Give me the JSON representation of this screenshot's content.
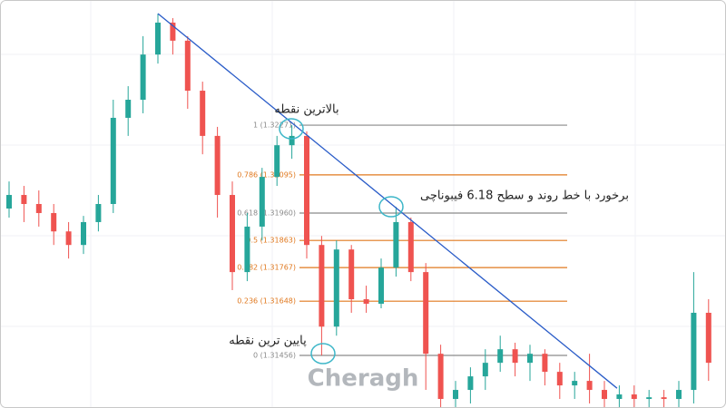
{
  "chart_data": {
    "type": "candlestick",
    "ylim": [
      1.3127,
      1.32714
    ],
    "up_color": "#26a69a",
    "down_color": "#ef5350",
    "open": [
      1.31976,
      1.32024,
      1.31992,
      1.3196,
      1.31895,
      1.31847,
      1.31928,
      1.31992,
      1.32297,
      1.32361,
      1.32521,
      1.32634,
      1.3257,
      1.32393,
      1.32233,
      1.32024,
      1.31751,
      1.31912,
      1.32088,
      1.322,
      1.32233,
      1.31847,
      1.31558,
      1.31831,
      1.31655,
      1.31639,
      1.31767,
      1.31928,
      1.31751,
      1.31462,
      1.31302,
      1.31334,
      1.31382,
      1.3143,
      1.31478,
      1.3143,
      1.31462,
      1.31398,
      1.3135,
      1.31366,
      1.31334,
      1.31302,
      1.31318,
      1.31302,
      1.31308,
      1.31302,
      1.31334,
      1.31607
    ],
    "high": [
      1.32072,
      1.32056,
      1.3204,
      1.31992,
      1.31928,
      1.3195,
      1.32024,
      1.32361,
      1.32409,
      1.32586,
      1.32666,
      1.3265,
      1.32586,
      1.32425,
      1.32265,
      1.32072,
      1.3196,
      1.3212,
      1.32233,
      1.32271,
      1.32249,
      1.31879,
      1.31863,
      1.31847,
      1.31703,
      1.31799,
      1.31982,
      1.31944,
      1.31783,
      1.31494,
      1.31366,
      1.31414,
      1.31478,
      1.31526,
      1.31501,
      1.31494,
      1.31478,
      1.3143,
      1.31398,
      1.31462,
      1.31366,
      1.3135,
      1.3135,
      1.31334,
      1.31334,
      1.31366,
      1.31751,
      1.31655
    ],
    "low": [
      1.31944,
      1.31928,
      1.31912,
      1.31847,
      1.31799,
      1.31815,
      1.31895,
      1.3196,
      1.32233,
      1.32313,
      1.32489,
      1.32521,
      1.32329,
      1.32168,
      1.31944,
      1.31687,
      1.31719,
      1.31863,
      1.32056,
      1.32152,
      1.31799,
      1.31456,
      1.31526,
      1.31607,
      1.31607,
      1.31623,
      1.31735,
      1.31719,
      1.31334,
      1.3127,
      1.3127,
      1.31286,
      1.31334,
      1.31398,
      1.31382,
      1.31366,
      1.3135,
      1.31302,
      1.31302,
      1.31286,
      1.3127,
      1.3127,
      1.3127,
      1.3127,
      1.3127,
      1.3127,
      1.31286,
      1.31366
    ],
    "close": [
      1.32024,
      1.31992,
      1.3196,
      1.31895,
      1.31847,
      1.31928,
      1.31992,
      1.32297,
      1.32361,
      1.32521,
      1.32634,
      1.3257,
      1.32393,
      1.32233,
      1.32024,
      1.31751,
      1.31912,
      1.32088,
      1.322,
      1.32233,
      1.31847,
      1.31558,
      1.31831,
      1.31655,
      1.31639,
      1.31767,
      1.31928,
      1.31751,
      1.31462,
      1.31302,
      1.31334,
      1.31382,
      1.3143,
      1.31478,
      1.3143,
      1.31462,
      1.31398,
      1.3135,
      1.31366,
      1.31334,
      1.31302,
      1.31318,
      1.31302,
      1.31308,
      1.31302,
      1.31334,
      1.31607,
      1.3143
    ],
    "fib_levels": [
      {
        "value": 1.32271,
        "label": "1 (1.32271)",
        "color": "#8a8a8a"
      },
      {
        "value": 1.32095,
        "label": "0.786 (1.32095)",
        "color": "#e0781e"
      },
      {
        "value": 1.3196,
        "label": "0.618 (1.31960)",
        "color": "#8a8a8a"
      },
      {
        "value": 1.31863,
        "label": "0.5 (1.31863)",
        "color": "#e0781e"
      },
      {
        "value": 1.31767,
        "label": "0.382 (1.31767)",
        "color": "#e0781e"
      },
      {
        "value": 1.31648,
        "label": "0.236 (1.31648)",
        "color": "#e0781e"
      },
      {
        "value": 1.31456,
        "label": "0 (1.31456)",
        "color": "#8a8a8a"
      }
    ],
    "trend_line": {
      "x": [
        10,
        40.85
      ],
      "y": [
        1.32666,
        1.3134
      ],
      "color": "#2a5cc8"
    },
    "annotations": [
      "بالاترین نقطه",
      "برخورد با خط روند و سطح 6.18 فیبوناچی",
      "پایین ترین نقطه"
    ],
    "watermark": "Cheragh"
  }
}
